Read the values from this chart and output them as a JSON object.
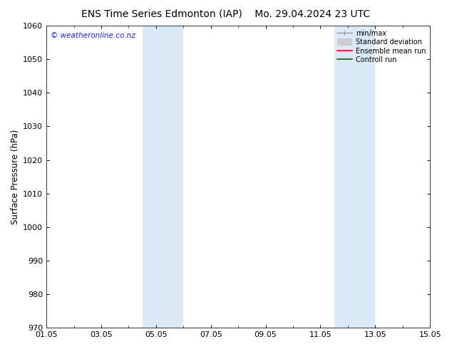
{
  "title_left": "ENS Time Series Edmonton (IAP)",
  "title_right": "Mo. 29.04.2024 23 UTC",
  "ylabel": "Surface Pressure (hPa)",
  "ylim": [
    970,
    1060
  ],
  "yticks": [
    970,
    980,
    990,
    1000,
    1010,
    1020,
    1030,
    1040,
    1050,
    1060
  ],
  "xlim": [
    0,
    14
  ],
  "xtick_positions": [
    0,
    2,
    4,
    6,
    8,
    10,
    12,
    14
  ],
  "xtick_labels": [
    "01.05",
    "03.05",
    "05.05",
    "07.05",
    "09.05",
    "11.05",
    "13.05",
    "15.05"
  ],
  "shaded_bands": [
    {
      "xmin": 3.5,
      "xmax": 5.0
    },
    {
      "xmin": 10.5,
      "xmax": 12.0
    }
  ],
  "shade_color": "#daeaf8",
  "watermark": "© weatheronline.co.nz",
  "watermark_color": "#1a1aff",
  "bg_color": "#ffffff",
  "spine_color": "#333333",
  "title_fontsize": 10,
  "tick_fontsize": 8,
  "ylabel_fontsize": 8.5,
  "watermark_fontsize": 7.5,
  "legend_fontsize": 7
}
